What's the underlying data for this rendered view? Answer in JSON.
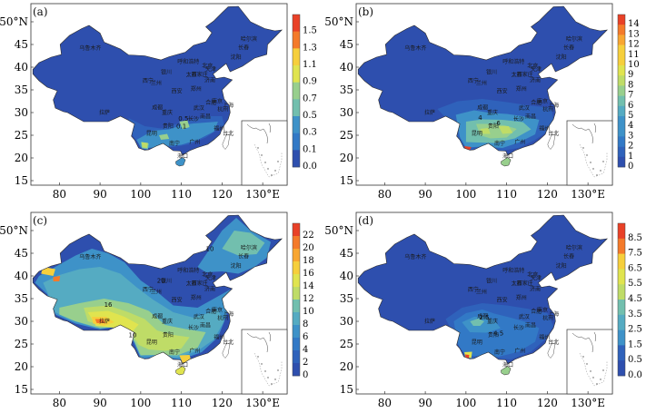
{
  "panels": [
    {
      "id": "a",
      "label": "(a)",
      "colorbar": [
        "1.5",
        "1.3",
        "1.1",
        "0.9",
        "0.7",
        "0.5",
        "0.3",
        "0.1",
        "0.0"
      ],
      "contour_labels": [
        "0.1",
        "0.5"
      ]
    },
    {
      "id": "b",
      "label": "(b)",
      "colorbar": [
        "14",
        "13",
        "12",
        "11",
        "10",
        "9",
        "8",
        "7",
        "6",
        "5",
        "4",
        "3",
        "2",
        "1",
        "0"
      ],
      "contour_labels": [
        "4",
        "6"
      ]
    },
    {
      "id": "c",
      "label": "(c)",
      "colorbar": [
        "22",
        "20",
        "18",
        "16",
        "14",
        "12",
        "10",
        "8",
        "6",
        "4",
        "2",
        "0"
      ],
      "contour_labels": [
        "16",
        "20",
        "10",
        "10"
      ]
    },
    {
      "id": "d",
      "label": "(d)",
      "colorbar": [
        "8.5",
        "7.5",
        "6.5",
        "5.5",
        "4.5",
        "3.5",
        "2.5",
        "1.5",
        "0.5",
        "0.0"
      ],
      "contour_labels": [
        "2.5",
        "4.5"
      ]
    }
  ],
  "axes": {
    "lat_ticks": [
      "50°N",
      "45",
      "40",
      "35",
      "30",
      "25",
      "20",
      "15"
    ],
    "lon_ticks": [
      "80",
      "90",
      "100",
      "110",
      "120",
      "130°E"
    ]
  },
  "cities": [
    "哈尔滨",
    "长春",
    "沈阳",
    "乌鲁木齐",
    "呼和浩特",
    "北京",
    "天津",
    "太原",
    "石家庄",
    "济南",
    "银川",
    "兰州",
    "西宁",
    "郑州",
    "西安",
    "合肥",
    "南京",
    "上海",
    "拉萨",
    "成都",
    "武汉",
    "杭州",
    "重庆",
    "长沙",
    "南昌",
    "贵阳",
    "福州",
    "昆明",
    "南宁",
    "广州",
    "台北",
    "海口"
  ],
  "colors": {
    "scale": [
      "#2e4fae",
      "#2f62bb",
      "#3279c6",
      "#3e92c8",
      "#55abc2",
      "#72bfae",
      "#98cf8d",
      "#bfdc67",
      "#e0e44f",
      "#f6cf3c",
      "#f8a631",
      "#f47a2a",
      "#e94127"
    ]
  }
}
